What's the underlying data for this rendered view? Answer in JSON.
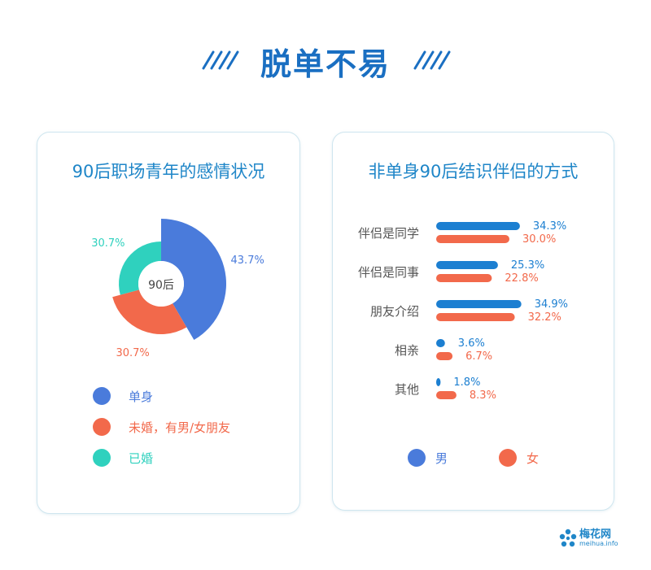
{
  "page": {
    "title": "脱单不易"
  },
  "colors": {
    "title_blue": "#1a6fc2",
    "card_title": "#1f86c8",
    "single": "#4a7bdb",
    "dating": "#f2694b",
    "married": "#2fd1be",
    "male": "#1c7fd1",
    "female": "#f2694b"
  },
  "chart_data": [
    {
      "type": "pie",
      "title": "90后职场青年的感情状况",
      "center_label": "90后",
      "slices": [
        {
          "name": "单身",
          "value": 43.7,
          "label": "43.7%",
          "color": "#4a7bdb"
        },
        {
          "name": "未婚，有男/女朋友",
          "value": 30.7,
          "label": "30.7%",
          "color": "#f2694b"
        },
        {
          "name": "已婚",
          "value": 30.7,
          "label": "30.7%",
          "color": "#2fd1be"
        }
      ],
      "legend": [
        "单身",
        "未婚，有男/女朋友",
        "已婚"
      ],
      "legend_position": "bottom"
    },
    {
      "type": "bar",
      "orientation": "horizontal",
      "title": "非单身90后结识伴侣的方式",
      "categories": [
        "伴侣是同学",
        "伴侣是同事",
        "朋友介绍",
        "相亲",
        "其他"
      ],
      "series": [
        {
          "name": "男",
          "color": "#1c7fd1",
          "values": [
            34.3,
            25.3,
            34.9,
            3.6,
            1.8
          ],
          "labels": [
            "34.3%",
            "25.3%",
            "34.9%",
            "3.6%",
            "1.8%"
          ]
        },
        {
          "name": "女",
          "color": "#f2694b",
          "values": [
            30.0,
            22.8,
            32.2,
            6.7,
            8.3
          ],
          "labels": [
            "30.0%",
            "22.8%",
            "32.2%",
            "6.7%",
            "8.3%"
          ]
        }
      ],
      "legend": [
        "男",
        "女"
      ],
      "legend_position": "bottom",
      "grid": false
    }
  ],
  "logo": {
    "name": "梅花网",
    "sub": "meihua.info"
  }
}
